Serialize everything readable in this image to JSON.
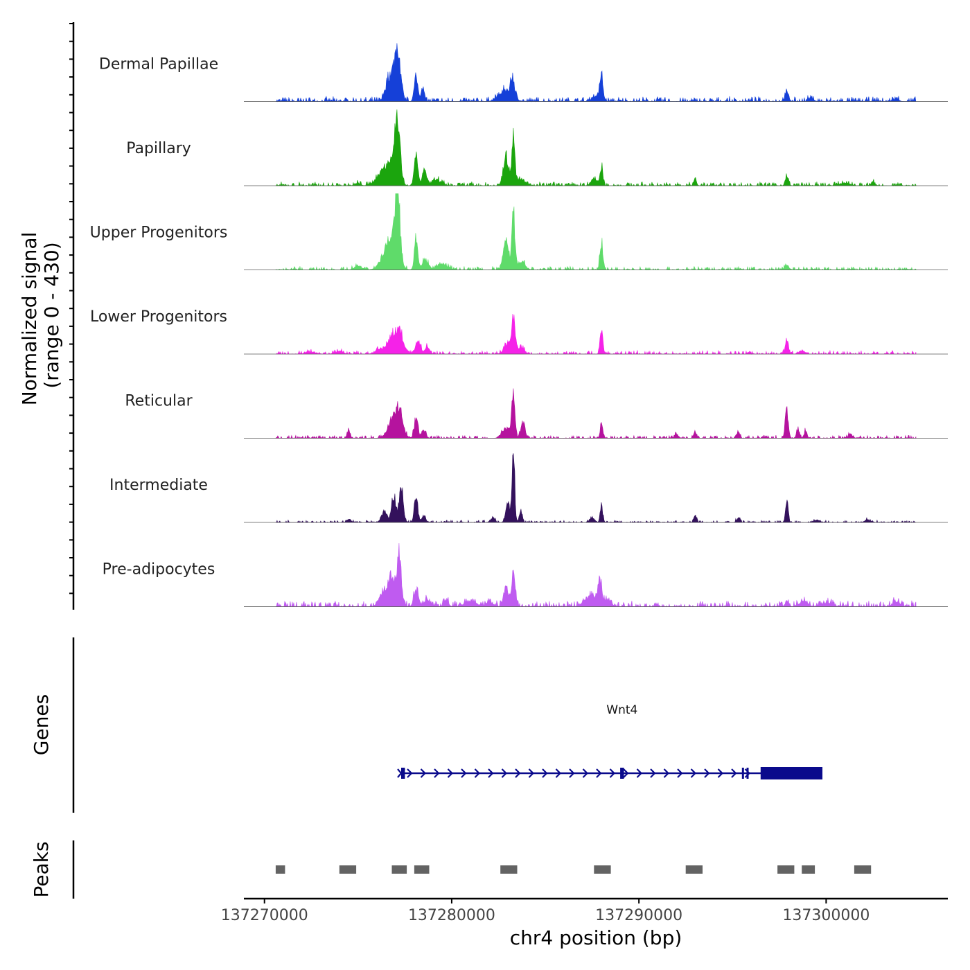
{
  "chart_data": {
    "type": "area",
    "title": "",
    "region": "chr4",
    "xlabel": "chr4 position (bp)",
    "ylabel_line1": "Normalized signal",
    "ylabel_line2": "(range 0 - 430)",
    "y_range": [
      0,
      430
    ],
    "xlim": [
      137268900,
      137306500
    ],
    "signal_extent": [
      137270600,
      137304800
    ],
    "x_ticks": [
      137270000,
      137280000,
      137290000,
      137300000
    ],
    "x_tick_labels": [
      "137270000",
      "137280000",
      "137290000",
      "137300000"
    ],
    "series": [
      {
        "name": "Dermal Papillae",
        "color": "#1540D8",
        "baseline": 25,
        "peaks": [
          [
            137277100,
            260,
            160
          ],
          [
            137276800,
            100,
            260
          ],
          [
            137276600,
            60,
            140
          ],
          [
            137278100,
            130,
            100
          ],
          [
            137278450,
            80,
            90
          ],
          [
            137282900,
            60,
            350
          ],
          [
            137283250,
            110,
            100
          ],
          [
            137288000,
            130,
            90
          ],
          [
            137287700,
            30,
            200
          ],
          [
            137297900,
            40,
            110
          ],
          [
            137299200,
            15,
            150
          ],
          [
            137303700,
            15,
            150
          ]
        ]
      },
      {
        "name": "Papillary",
        "color": "#1BA50D",
        "baseline": 20,
        "peaks": [
          [
            137277100,
            370,
            140
          ],
          [
            137276700,
            120,
            300
          ],
          [
            137276200,
            50,
            300
          ],
          [
            137278100,
            170,
            100
          ],
          [
            137278550,
            90,
            110
          ],
          [
            137279200,
            30,
            250
          ],
          [
            137282900,
            170,
            140
          ],
          [
            137283300,
            290,
            80
          ],
          [
            137283700,
            40,
            200
          ],
          [
            137288000,
            100,
            80
          ],
          [
            137287600,
            40,
            150
          ],
          [
            137293000,
            50,
            70
          ],
          [
            137297900,
            60,
            80
          ],
          [
            137275000,
            15,
            120
          ],
          [
            137301000,
            15,
            250
          ],
          [
            137302500,
            20,
            80
          ]
        ]
      },
      {
        "name": "Upper Progenitors",
        "color": "#5FDB6A",
        "baseline": 18,
        "peaks": [
          [
            137277100,
            410,
            130
          ],
          [
            137276700,
            170,
            350
          ],
          [
            137278100,
            190,
            90
          ],
          [
            137278600,
            60,
            150
          ],
          [
            137279500,
            30,
            300
          ],
          [
            137282900,
            160,
            150
          ],
          [
            137283300,
            310,
            80
          ],
          [
            137283700,
            50,
            200
          ],
          [
            137288000,
            160,
            80
          ],
          [
            137297900,
            30,
            90
          ],
          [
            137275000,
            20,
            200
          ]
        ]
      },
      {
        "name": "Lower Progenitors",
        "color": "#F522E8",
        "baseline": 18,
        "peaks": [
          [
            137277200,
            120,
            220
          ],
          [
            137276800,
            80,
            200
          ],
          [
            137276300,
            30,
            300
          ],
          [
            137278200,
            70,
            140
          ],
          [
            137278700,
            40,
            120
          ],
          [
            137283300,
            190,
            100
          ],
          [
            137283000,
            60,
            200
          ],
          [
            137283700,
            40,
            150
          ],
          [
            137288000,
            150,
            70
          ],
          [
            137297900,
            80,
            80
          ],
          [
            137298700,
            20,
            150
          ],
          [
            137274000,
            15,
            200
          ],
          [
            137272500,
            12,
            250
          ]
        ]
      },
      {
        "name": "Reticular",
        "color": "#B5139E",
        "baseline": 15,
        "peaks": [
          [
            137277200,
            150,
            200
          ],
          [
            137276800,
            90,
            250
          ],
          [
            137278100,
            110,
            100
          ],
          [
            137278500,
            50,
            100
          ],
          [
            137283300,
            230,
            90
          ],
          [
            137282900,
            60,
            200
          ],
          [
            137283800,
            90,
            110
          ],
          [
            137288000,
            80,
            70
          ],
          [
            137292000,
            25,
            100
          ],
          [
            137293000,
            30,
            80
          ],
          [
            137295300,
            35,
            70
          ],
          [
            137297900,
            160,
            80
          ],
          [
            137298500,
            50,
            80
          ],
          [
            137298900,
            40,
            80
          ],
          [
            137274500,
            40,
            80
          ],
          [
            137301300,
            20,
            120
          ]
        ]
      },
      {
        "name": "Intermediate",
        "color": "#33115C",
        "baseline": 12,
        "peaks": [
          [
            137277300,
            200,
            110
          ],
          [
            137276900,
            150,
            110
          ],
          [
            137276400,
            60,
            150
          ],
          [
            137278100,
            150,
            90
          ],
          [
            137278500,
            40,
            100
          ],
          [
            137283300,
            390,
            70
          ],
          [
            137283000,
            110,
            110
          ],
          [
            137283700,
            70,
            80
          ],
          [
            137282200,
            30,
            100
          ],
          [
            137288000,
            90,
            70
          ],
          [
            137287500,
            30,
            120
          ],
          [
            137293000,
            50,
            70
          ],
          [
            137295300,
            25,
            80
          ],
          [
            137297900,
            120,
            70
          ],
          [
            137274500,
            20,
            100
          ],
          [
            137299500,
            15,
            150
          ],
          [
            137302200,
            15,
            150
          ]
        ]
      },
      {
        "name": "Pre-adipocytes",
        "color": "#BF5BF0",
        "baseline": 30,
        "peaks": [
          [
            137277200,
            270,
            120
          ],
          [
            137276800,
            150,
            220
          ],
          [
            137276300,
            70,
            200
          ],
          [
            137278100,
            100,
            120
          ],
          [
            137278700,
            40,
            150
          ],
          [
            137283300,
            190,
            90
          ],
          [
            137282900,
            110,
            120
          ],
          [
            137287400,
            60,
            300
          ],
          [
            137287900,
            140,
            100
          ],
          [
            137288300,
            40,
            200
          ],
          [
            137279700,
            35,
            120
          ],
          [
            137281000,
            30,
            300
          ],
          [
            137282000,
            25,
            200
          ],
          [
            137297900,
            30,
            90
          ],
          [
            137298800,
            30,
            200
          ],
          [
            137303800,
            25,
            200
          ],
          [
            137300000,
            20,
            300
          ]
        ]
      }
    ],
    "genes_track": {
      "label": "Genes",
      "gene_name": "Wnt4",
      "color": "#0A0A8C",
      "start": 137277300,
      "end": 137299800,
      "exons": [
        [
          137277300,
          137277500
        ],
        [
          137289000,
          137289200
        ],
        [
          137295500,
          137295600
        ],
        [
          137295750,
          137295850
        ],
        [
          137296500,
          137299800
        ]
      ]
    },
    "peaks_track": {
      "label": "Peaks",
      "color": "#636363",
      "regions": [
        [
          137270600,
          137271100
        ],
        [
          137274000,
          137274900
        ],
        [
          137276800,
          137277600
        ],
        [
          137278000,
          137278800
        ],
        [
          137282600,
          137283500
        ],
        [
          137287600,
          137288500
        ],
        [
          137292500,
          137293400
        ],
        [
          137297400,
          137298300
        ],
        [
          137298700,
          137299400
        ],
        [
          137301500,
          137302400
        ]
      ]
    }
  }
}
